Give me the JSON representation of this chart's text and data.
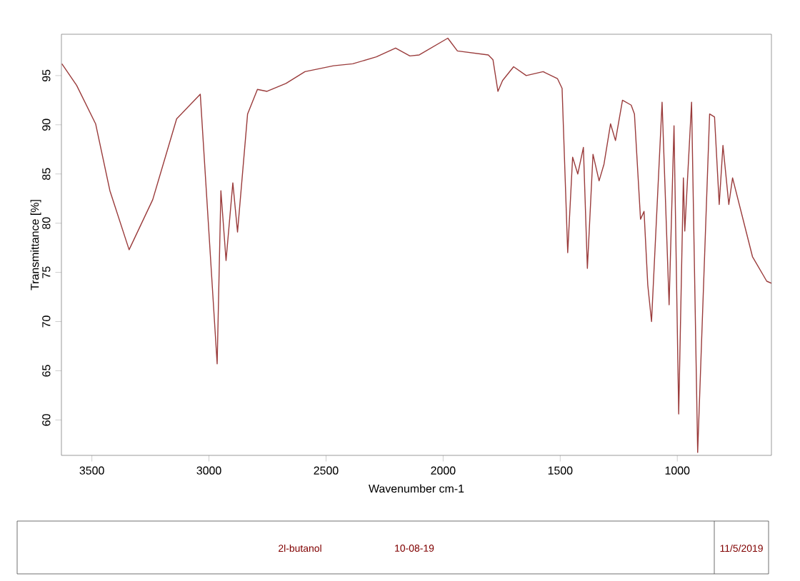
{
  "chart_data": {
    "type": "line",
    "xlabel": "Wavenumber cm-1",
    "ylabel": "Transmittance [%]",
    "xlim": [
      3630,
      598
    ],
    "ylim": [
      56.4,
      99.2
    ],
    "xticks": [
      3500,
      3000,
      2500,
      2000,
      1500,
      1000
    ],
    "yticks": [
      60,
      65,
      70,
      75,
      80,
      85,
      90,
      95
    ],
    "grid": false,
    "marker": "none",
    "annotations": [
      "2l-butanol",
      "10-08-19",
      "11/5/2019"
    ],
    "series": [
      {
        "color": "#9a3b3b",
        "x": [
          3628,
          3565,
          3484,
          3423,
          3341,
          3240,
          3138,
          3037,
          2965,
          2949,
          2927,
          2898,
          2878,
          2835,
          2793,
          2752,
          2671,
          2590,
          2468,
          2386,
          2285,
          2203,
          2142,
          2102,
          1980,
          1939,
          1807,
          1787,
          1766,
          1746,
          1699,
          1645,
          1573,
          1512,
          1492,
          1468,
          1447,
          1425,
          1401,
          1384,
          1360,
          1334,
          1313,
          1285,
          1264,
          1234,
          1197,
          1183,
          1157,
          1142,
          1126,
          1110,
          1065,
          1035,
          1014,
          994,
          974,
          968,
          939,
          913,
          862,
          841,
          821,
          805,
          780,
          764,
          679,
          618,
          598
        ],
        "values": [
          96.2,
          94.0,
          90.1,
          83.3,
          77.3,
          82.4,
          90.6,
          93.1,
          65.7,
          83.3,
          76.2,
          84.1,
          79.1,
          91.1,
          93.6,
          93.4,
          94.2,
          95.4,
          96.0,
          96.2,
          96.9,
          97.8,
          97.0,
          97.1,
          98.8,
          97.5,
          97.1,
          96.6,
          93.4,
          94.5,
          95.9,
          95.0,
          95.4,
          94.7,
          93.7,
          77.0,
          86.7,
          85.0,
          87.7,
          75.4,
          87.0,
          84.3,
          86.0,
          90.1,
          88.4,
          92.5,
          92.0,
          91.1,
          80.4,
          81.2,
          73.7,
          70.0,
          92.3,
          71.7,
          89.9,
          60.6,
          84.6,
          79.2,
          92.3,
          56.7,
          91.1,
          90.8,
          81.9,
          87.9,
          81.9,
          84.6,
          76.6,
          74.1,
          73.9
        ]
      }
    ]
  }
}
